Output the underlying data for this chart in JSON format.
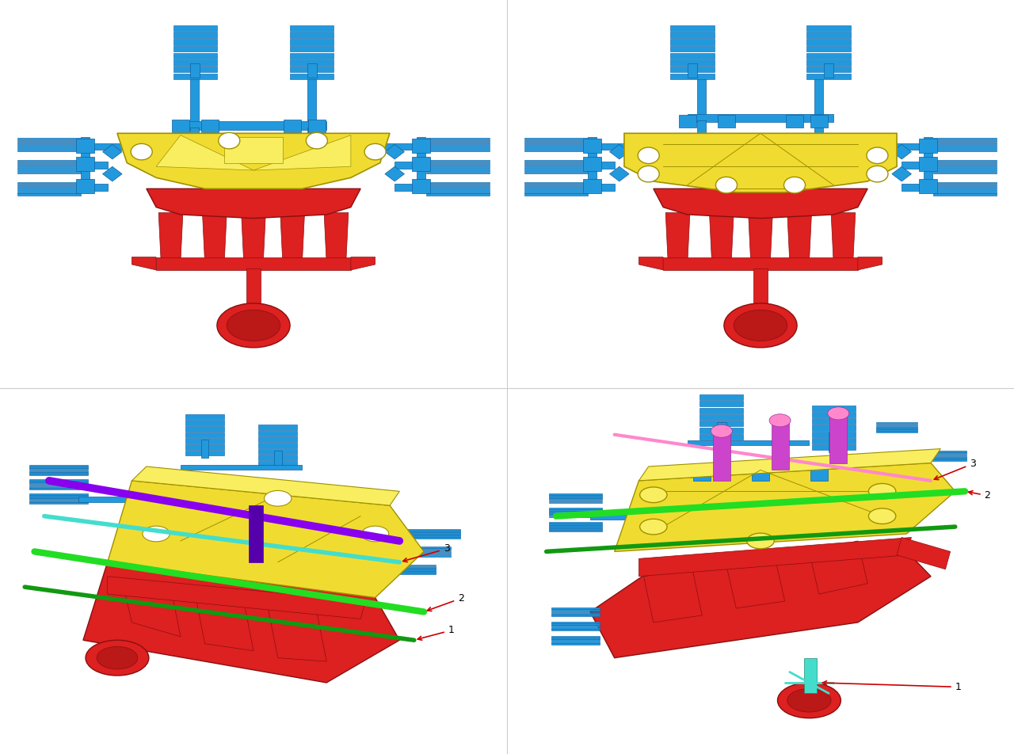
{
  "background_color": "#ffffff",
  "colors": {
    "blue": "#2299DD",
    "blue_edge": "#1060A0",
    "blue_light": "#55BBEE",
    "yellow": "#F0DC30",
    "yellow_edge": "#A09000",
    "yellow_light": "#F8EE60",
    "red": "#DD2020",
    "red_edge": "#881010",
    "red_dark": "#BB1818",
    "green": "#22DD22",
    "green_dark": "#119911",
    "purple": "#8800EE",
    "purple_dark": "#5500AA",
    "cyan_rod": "#44DDCC",
    "cyan_dark": "#228877",
    "pink": "#FF88CC",
    "magenta": "#CC44CC",
    "magenta_dark": "#993399",
    "arrow_red": "#CC0000",
    "white": "#FFFFFF",
    "gray": "#CCCCCC"
  },
  "divider": "#dddddd"
}
